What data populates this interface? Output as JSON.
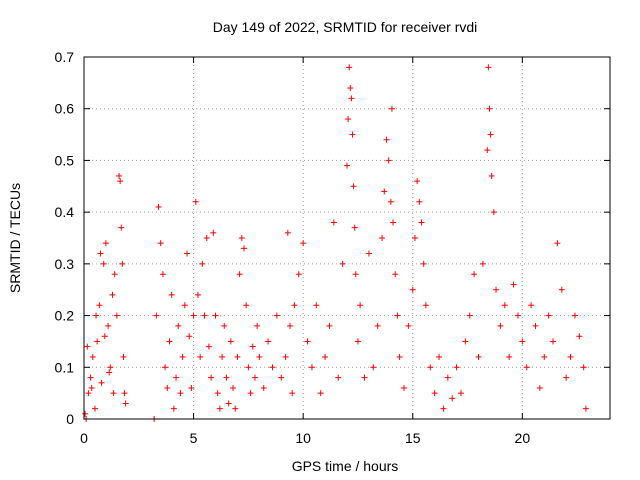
{
  "chart_data": {
    "type": "scatter",
    "title": "Day 149 of 2022, SRMTID for receiver rvdi",
    "xlabel": "GPS time / hours",
    "ylabel": "SRMTID / TECUs",
    "xlim": [
      0,
      24
    ],
    "ylim": [
      0,
      0.7
    ],
    "x_ticks": [
      0,
      5,
      10,
      15,
      20
    ],
    "x_tick_labels": [
      "0",
      "5",
      "10",
      "15",
      "20"
    ],
    "y_ticks": [
      0,
      0.1,
      0.2,
      0.3,
      0.4,
      0.5,
      0.6,
      0.7
    ],
    "y_tick_labels": [
      "0",
      "0.1",
      "0.2",
      "0.3",
      "0.4",
      "0.5",
      "0.6",
      "0.7"
    ],
    "grid": true,
    "marker": "plus",
    "marker_color": "#ff0000",
    "series": [
      {
        "name": "SRMTID",
        "points": [
          [
            0.05,
            0.01
          ],
          [
            0.1,
            0.0
          ],
          [
            0.2,
            0.05
          ],
          [
            0.3,
            0.08
          ],
          [
            0.4,
            0.12
          ],
          [
            0.5,
            0.02
          ],
          [
            0.6,
            0.15
          ],
          [
            0.7,
            0.22
          ],
          [
            0.8,
            0.07
          ],
          [
            0.9,
            0.3
          ],
          [
            1.0,
            0.34
          ],
          [
            1.1,
            0.18
          ],
          [
            1.2,
            0.1
          ],
          [
            1.3,
            0.24
          ],
          [
            1.4,
            0.28
          ],
          [
            1.5,
            0.2
          ],
          [
            1.6,
            0.47
          ],
          [
            1.65,
            0.46
          ],
          [
            1.7,
            0.37
          ],
          [
            1.75,
            0.3
          ],
          [
            1.8,
            0.12
          ],
          [
            1.85,
            0.05
          ],
          [
            1.9,
            0.03
          ],
          [
            0.15,
            0.14
          ],
          [
            0.35,
            0.06
          ],
          [
            0.55,
            0.2
          ],
          [
            0.75,
            0.32
          ],
          [
            0.95,
            0.16
          ],
          [
            1.15,
            0.09
          ],
          [
            1.35,
            0.05
          ],
          [
            3.2,
            0.0
          ],
          [
            3.3,
            0.2
          ],
          [
            3.4,
            0.41
          ],
          [
            3.5,
            0.34
          ],
          [
            3.6,
            0.28
          ],
          [
            3.7,
            0.1
          ],
          [
            3.8,
            0.06
          ],
          [
            3.9,
            0.15
          ],
          [
            4.0,
            0.24
          ],
          [
            4.1,
            0.02
          ],
          [
            4.2,
            0.08
          ],
          [
            4.3,
            0.18
          ],
          [
            4.4,
            0.05
          ],
          [
            4.5,
            0.12
          ],
          [
            4.6,
            0.22
          ],
          [
            4.7,
            0.32
          ],
          [
            4.8,
            0.16
          ],
          [
            4.9,
            0.06
          ],
          [
            5.0,
            0.2
          ],
          [
            5.1,
            0.42
          ],
          [
            5.2,
            0.24
          ],
          [
            5.3,
            0.12
          ],
          [
            5.4,
            0.3
          ],
          [
            5.5,
            0.2
          ],
          [
            5.6,
            0.35
          ],
          [
            5.7,
            0.14
          ],
          [
            5.8,
            0.08
          ],
          [
            5.9,
            0.36
          ],
          [
            6.0,
            0.2
          ],
          [
            6.1,
            0.05
          ],
          [
            6.2,
            0.02
          ],
          [
            6.3,
            0.12
          ],
          [
            6.4,
            0.18
          ],
          [
            6.5,
            0.08
          ],
          [
            6.6,
            0.03
          ],
          [
            6.7,
            0.15
          ],
          [
            6.8,
            0.06
          ],
          [
            6.9,
            0.02
          ],
          [
            7.0,
            0.12
          ],
          [
            7.1,
            0.28
          ],
          [
            7.2,
            0.35
          ],
          [
            7.3,
            0.33
          ],
          [
            7.4,
            0.22
          ],
          [
            7.5,
            0.1
          ],
          [
            7.6,
            0.05
          ],
          [
            7.7,
            0.14
          ],
          [
            7.8,
            0.08
          ],
          [
            7.9,
            0.18
          ],
          [
            8.0,
            0.12
          ],
          [
            8.2,
            0.06
          ],
          [
            8.4,
            0.15
          ],
          [
            8.6,
            0.1
          ],
          [
            8.8,
            0.2
          ],
          [
            9.0,
            0.08
          ],
          [
            9.2,
            0.12
          ],
          [
            9.3,
            0.36
          ],
          [
            9.4,
            0.18
          ],
          [
            9.5,
            0.05
          ],
          [
            9.6,
            0.22
          ],
          [
            9.8,
            0.28
          ],
          [
            10.0,
            0.34
          ],
          [
            10.2,
            0.15
          ],
          [
            10.4,
            0.1
          ],
          [
            10.6,
            0.22
          ],
          [
            10.8,
            0.05
          ],
          [
            11.0,
            0.12
          ],
          [
            11.2,
            0.18
          ],
          [
            11.4,
            0.38
          ],
          [
            11.6,
            0.08
          ],
          [
            11.8,
            0.3
          ],
          [
            12.0,
            0.49
          ],
          [
            12.05,
            0.58
          ],
          [
            12.1,
            0.68
          ],
          [
            12.15,
            0.64
          ],
          [
            12.2,
            0.62
          ],
          [
            12.25,
            0.55
          ],
          [
            12.3,
            0.45
          ],
          [
            12.35,
            0.37
          ],
          [
            12.4,
            0.28
          ],
          [
            12.5,
            0.15
          ],
          [
            12.6,
            0.22
          ],
          [
            12.8,
            0.08
          ],
          [
            13.0,
            0.32
          ],
          [
            13.2,
            0.1
          ],
          [
            13.4,
            0.18
          ],
          [
            13.6,
            0.35
          ],
          [
            13.7,
            0.44
          ],
          [
            13.8,
            0.54
          ],
          [
            13.9,
            0.5
          ],
          [
            14.0,
            0.42
          ],
          [
            14.05,
            0.6
          ],
          [
            14.1,
            0.38
          ],
          [
            14.2,
            0.28
          ],
          [
            14.3,
            0.2
          ],
          [
            14.4,
            0.12
          ],
          [
            14.6,
            0.06
          ],
          [
            14.8,
            0.18
          ],
          [
            15.0,
            0.25
          ],
          [
            15.1,
            0.35
          ],
          [
            15.2,
            0.46
          ],
          [
            15.3,
            0.42
          ],
          [
            15.4,
            0.38
          ],
          [
            15.5,
            0.3
          ],
          [
            15.6,
            0.22
          ],
          [
            15.8,
            0.1
          ],
          [
            16.0,
            0.05
          ],
          [
            16.2,
            0.12
          ],
          [
            16.4,
            0.02
          ],
          [
            16.6,
            0.08
          ],
          [
            16.8,
            0.04
          ],
          [
            17.0,
            0.1
          ],
          [
            17.2,
            0.05
          ],
          [
            17.4,
            0.15
          ],
          [
            17.6,
            0.2
          ],
          [
            17.8,
            0.28
          ],
          [
            18.0,
            0.12
          ],
          [
            18.2,
            0.3
          ],
          [
            18.4,
            0.52
          ],
          [
            18.45,
            0.68
          ],
          [
            18.5,
            0.6
          ],
          [
            18.55,
            0.55
          ],
          [
            18.6,
            0.47
          ],
          [
            18.7,
            0.4
          ],
          [
            18.8,
            0.25
          ],
          [
            19.0,
            0.18
          ],
          [
            19.2,
            0.22
          ],
          [
            19.4,
            0.12
          ],
          [
            19.6,
            0.26
          ],
          [
            19.8,
            0.2
          ],
          [
            20.0,
            0.15
          ],
          [
            20.2,
            0.1
          ],
          [
            20.4,
            0.22
          ],
          [
            20.6,
            0.18
          ],
          [
            20.8,
            0.06
          ],
          [
            21.0,
            0.12
          ],
          [
            21.2,
            0.2
          ],
          [
            21.4,
            0.15
          ],
          [
            21.6,
            0.34
          ],
          [
            21.8,
            0.25
          ],
          [
            22.0,
            0.08
          ],
          [
            22.2,
            0.12
          ],
          [
            22.4,
            0.2
          ],
          [
            22.6,
            0.16
          ],
          [
            22.8,
            0.1
          ],
          [
            22.9,
            0.02
          ]
        ]
      }
    ]
  }
}
